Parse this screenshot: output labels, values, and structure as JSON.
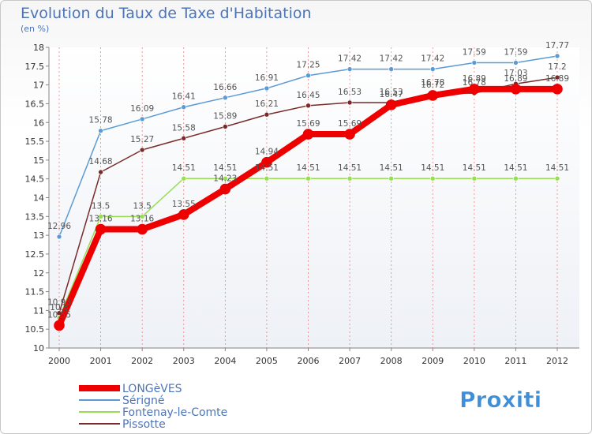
{
  "chart_data": {
    "type": "line",
    "title": "Evolution du Taux de Taxe d'Habitation",
    "subtitle": "(en %)",
    "x": [
      "2000",
      "2001",
      "2002",
      "2003",
      "2004",
      "2005",
      "2006",
      "2007",
      "2008",
      "2009",
      "2010",
      "2011",
      "2012"
    ],
    "ylim": [
      10,
      18
    ],
    "yticks": [
      "10",
      "10.5",
      "11",
      "11.5",
      "12",
      "12.5",
      "13",
      "13.5",
      "14",
      "14.5",
      "15",
      "15.5",
      "16",
      "16.5",
      "17",
      "17.5",
      "18"
    ],
    "grid": "dashed-red-x-gridlines",
    "legend_position": "bottom-left",
    "series": [
      {
        "name": "LONGèVES",
        "color": "#ee0000",
        "width": 8,
        "values": [
          10.6,
          13.16,
          13.16,
          13.55,
          14.23,
          14.94,
          15.69,
          15.69,
          16.47,
          16.72,
          16.89,
          16.89,
          16.89
        ],
        "labels": [
          "10.55",
          "13.16",
          "13.16",
          "13.55",
          "14.23",
          "14.94",
          "15.69",
          "15.69",
          "16.47",
          "16.72",
          "16.89",
          "16.89",
          "16.89"
        ]
      },
      {
        "name": "Sérigné",
        "color": "#5b9bd5",
        "width": 1.5,
        "values": [
          12.96,
          15.78,
          16.09,
          16.41,
          16.66,
          16.91,
          17.25,
          17.42,
          17.42,
          17.42,
          17.59,
          17.59,
          17.77
        ],
        "labels": [
          "12.96",
          "15.78",
          "16.09",
          "16.41",
          "16.66",
          "16.91",
          "17.25",
          "17.42",
          "17.42",
          "17.42",
          "17.59",
          "17.59",
          "17.77"
        ]
      },
      {
        "name": "Fontenay-le-Comte",
        "color": "#99dd55",
        "width": 1.5,
        "values": [
          10.8,
          13.5,
          13.5,
          14.51,
          14.51,
          14.51,
          14.51,
          14.51,
          14.51,
          14.51,
          14.51,
          14.51,
          14.51
        ],
        "labels": [
          "10.8",
          "13.5",
          "13.5",
          "14.51",
          "14.51",
          "14.51",
          "14.51",
          "14.51",
          "14.51",
          "14.51",
          "14.51",
          "14.51",
          "14.51"
        ]
      },
      {
        "name": "Pissotte",
        "color": "#7a2a2a",
        "width": 1.5,
        "values": [
          10.93,
          14.68,
          15.27,
          15.58,
          15.89,
          16.21,
          16.45,
          16.53,
          16.53,
          16.78,
          16.78,
          17.03,
          17.2
        ],
        "labels": [
          "10.93",
          "14.68",
          "15.27",
          "15.58",
          "15.89",
          "16.21",
          "16.45",
          "16.53",
          "16.53",
          "16.78",
          "16.78",
          "17.03",
          "17.2"
        ]
      }
    ]
  },
  "brand": {
    "text": "Proxiti"
  }
}
